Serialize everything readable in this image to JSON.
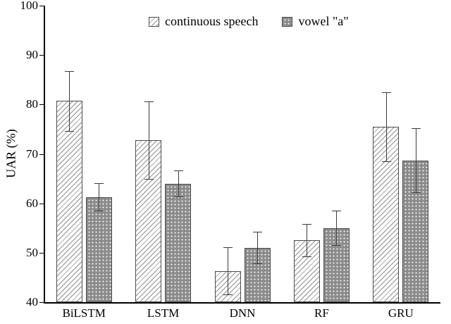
{
  "chart_data": {
    "type": "bar",
    "title": "",
    "xlabel": "",
    "ylabel": "UAR (%)",
    "ylim": [
      40,
      100
    ],
    "yticks": [
      40,
      50,
      60,
      70,
      80,
      90,
      100
    ],
    "grid": false,
    "legend_position": "top-center-inside",
    "categories": [
      "BiLSTM",
      "LSTM",
      "DNN",
      "RF",
      "GRU"
    ],
    "series": [
      {
        "name": "continuous speech",
        "style": "white-diagonal-hatch",
        "values": [
          80.7,
          72.8,
          46.3,
          52.5,
          75.5
        ],
        "errors": [
          6.0,
          7.8,
          4.8,
          3.3,
          7.0
        ]
      },
      {
        "name": "vowel \"a\"",
        "style": "gray-white-dots",
        "values": [
          61.3,
          64.0,
          51.0,
          55.0,
          68.7
        ],
        "errors": [
          2.8,
          2.6,
          3.2,
          3.5,
          6.5
        ]
      }
    ]
  },
  "colors": {
    "background": "#ffffff",
    "axis": "#000000",
    "bar_border": "#4d4d4d",
    "hatch_line": "#8f8f8f",
    "dot_fill": "#8c8c8c",
    "dot_color": "#ffffff",
    "error_bar": "#3a3a3a"
  }
}
